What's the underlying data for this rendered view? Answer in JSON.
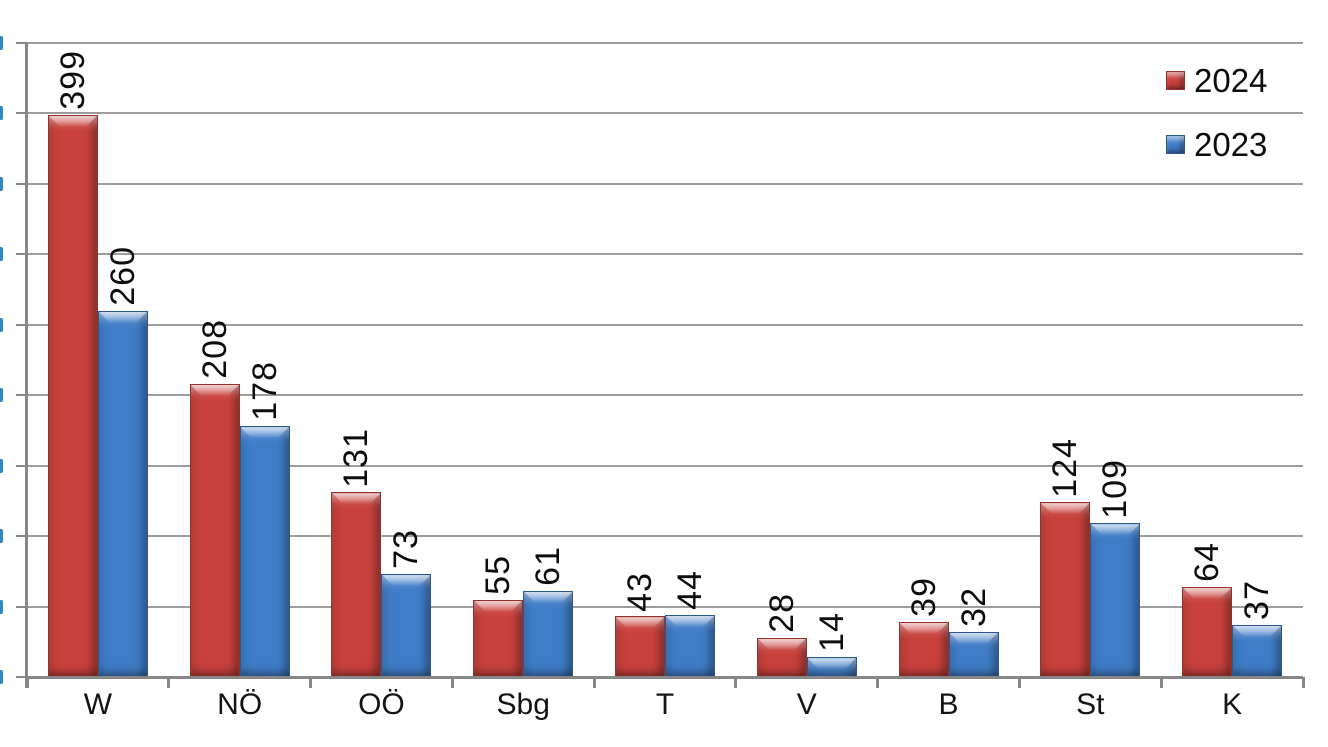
{
  "chart_data": {
    "type": "bar",
    "title": "",
    "xlabel": "",
    "ylabel": "",
    "categories": [
      "W",
      "NÖ",
      "OÖ",
      "Sbg",
      "T",
      "V",
      "B",
      "St",
      "K"
    ],
    "series": [
      {
        "name": "2024",
        "color": "#c8413c",
        "edge_color": "#96302c",
        "values": [
          399,
          208,
          131,
          55,
          43,
          28,
          39,
          124,
          64
        ]
      },
      {
        "name": "2023",
        "color": "#3f7dc8",
        "edge_color": "#2b578f",
        "values": [
          260,
          178,
          73,
          61,
          44,
          14,
          32,
          109,
          37
        ]
      }
    ],
    "ylim": [
      0,
      450
    ],
    "y_tick_interval": 50,
    "grid": "on",
    "gridline_color": "#9c9c9c",
    "axis_color": "#878787",
    "legend_position": "top-right",
    "value_labels": "rotated 90° above bars",
    "y_axis_labels": "cropped off left edge (blue fragments visible)",
    "y_axis_label_fragment_color": "#2f87c5",
    "bar_style": "3d-bevel"
  }
}
